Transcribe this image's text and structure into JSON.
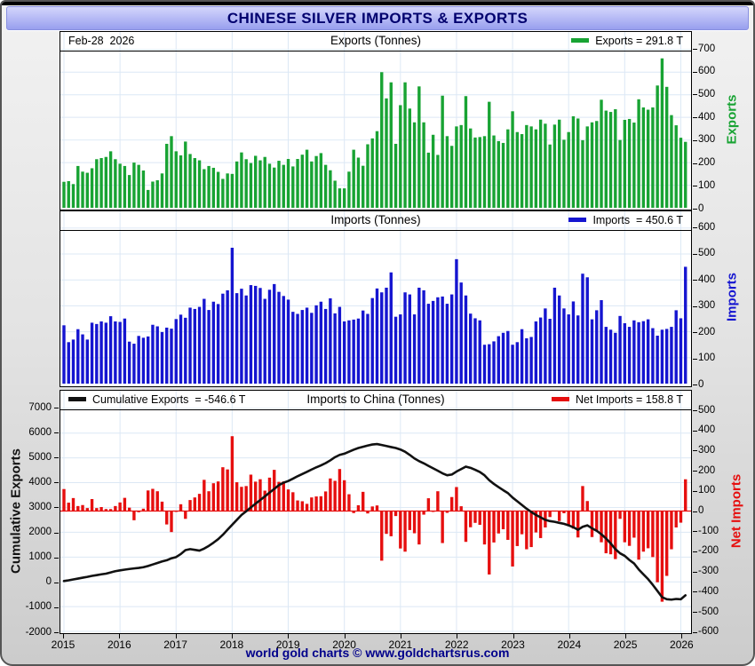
{
  "title": "CHINESE SILVER IMPORTS & EXPORTS",
  "date_label": "Feb-28  2026",
  "footer": "world gold charts © www.goldchartsrus.com",
  "colors": {
    "exports": "#18a333",
    "imports": "#1515d0",
    "net_imports": "#e60f0f",
    "cumulative_line": "#111111",
    "title_text": "#00006e",
    "grid": "#dce8f5",
    "panel_border": "#000000",
    "footer_text": "#00008b"
  },
  "panels": {
    "exports": {
      "title": "Exports (Tonnes)",
      "legend": "Exports = 291.8 T",
      "axis_label": "Exports"
    },
    "imports": {
      "title": "Imports (Tonnes)",
      "legend": "Imports  = 450.6 T",
      "axis_label": "Imports"
    },
    "bottom": {
      "title": "Imports to China (Tonnes)",
      "legend_left": "Cumulative Exports  = -546.6 T",
      "legend_right": "Net Imports = 158.8 T",
      "axis_label_left": "Cumulative Exports",
      "axis_label_right": "Net Imports"
    }
  },
  "x_years": [
    "2015",
    "2016",
    "2017",
    "2018",
    "2019",
    "2020",
    "2021",
    "2022",
    "2023",
    "2024",
    "2025",
    "2026"
  ],
  "chart_data": [
    {
      "type": "bar",
      "name": "Exports",
      "title": "Exports (Tonnes)",
      "legend": "Exports = 291.8 T",
      "unit": "tonnes",
      "x": {
        "start": "2015-01",
        "end": "2026-02",
        "interval": "month",
        "count": 134
      },
      "xticks": [
        2015,
        2016,
        2017,
        2018,
        2019,
        2020,
        2021,
        2022,
        2023,
        2024,
        2025,
        2026
      ],
      "ylim": [
        0,
        700
      ],
      "yticks": [
        0,
        100,
        200,
        300,
        400,
        500,
        600,
        700
      ],
      "grid": true,
      "legend_position": "top-right",
      "last_value": 291.8,
      "values": [
        115,
        118,
        105,
        185,
        160,
        155,
        175,
        215,
        220,
        225,
        250,
        215,
        195,
        185,
        145,
        200,
        190,
        165,
        79,
        116,
        122,
        152,
        283,
        317,
        250,
        232,
        293,
        238,
        220,
        210,
        171,
        185,
        177,
        159,
        128,
        152,
        150,
        205,
        245,
        215,
        198,
        230,
        210,
        225,
        195,
        178,
        208,
        190,
        216,
        183,
        216,
        235,
        257,
        205,
        229,
        242,
        190,
        166,
        120,
        86,
        86,
        160,
        257,
        222,
        186,
        281,
        307,
        339,
        600,
        484,
        555,
        283,
        454,
        555,
        439,
        378,
        537,
        378,
        244,
        323,
        234,
        496,
        317,
        274,
        360,
        366,
        494,
        351,
        311,
        313,
        317,
        469,
        320,
        295,
        287,
        347,
        427,
        335,
        326,
        366,
        360,
        347,
        390,
        372,
        280,
        368,
        390,
        301,
        335,
        405,
        395,
        299,
        360,
        378,
        384,
        478,
        430,
        424,
        436,
        300,
        389,
        393,
        377,
        480,
        444,
        434,
        444,
        541,
        661,
        535,
        410,
        365,
        310,
        291.8
      ]
    },
    {
      "type": "bar",
      "name": "Imports",
      "title": "Imports (Tonnes)",
      "legend": "Imports  = 450.6 T",
      "unit": "tonnes",
      "x": {
        "start": "2015-01",
        "end": "2026-02",
        "interval": "month",
        "count": 134
      },
      "xticks": [
        2015,
        2016,
        2017,
        2018,
        2019,
        2020,
        2021,
        2022,
        2023,
        2024,
        2025,
        2026
      ],
      "ylim": [
        0,
        600
      ],
      "yticks": [
        0,
        100,
        200,
        300,
        400,
        500,
        600
      ],
      "grid": true,
      "legend_position": "top-right",
      "last_value": 450.6,
      "values": [
        225,
        160,
        170,
        210,
        190,
        170,
        235,
        230,
        240,
        235,
        260,
        240,
        238,
        251,
        162,
        154,
        184,
        177,
        182,
        227,
        221,
        199,
        216,
        212,
        249,
        266,
        254,
        293,
        288,
        296,
        327,
        284,
        316,
        307,
        347,
        360,
        524,
        349,
        366,
        340,
        380,
        377,
        369,
        327,
        362,
        384,
        354,
        338,
        324,
        277,
        269,
        284,
        293,
        273,
        302,
        316,
        288,
        329,
        271,
        296,
        240,
        244,
        247,
        251,
        282,
        269,
        330,
        367,
        352,
        370,
        429,
        258,
        267,
        352,
        344,
        267,
        370,
        360,
        308,
        319,
        333,
        336,
        308,
        344,
        480,
        390,
        340,
        270,
        252,
        244,
        150,
        152,
        163,
        183,
        196,
        203,
        150,
        160,
        210,
        175,
        180,
        240,
        255,
        290,
        250,
        370,
        340,
        290,
        267,
        317,
        263,
        424,
        410,
        248,
        283,
        322,
        219,
        208,
        196,
        261,
        233,
        219,
        244,
        237,
        241,
        248,
        214,
        185,
        208,
        211,
        219,
        283,
        252,
        450.6
      ]
    },
    {
      "type": "bar+line",
      "name": "Imports to China",
      "title": "Imports to China (Tonnes)",
      "x": {
        "start": "2015-01",
        "end": "2026-02",
        "interval": "month",
        "count": 134
      },
      "xticks": [
        2015,
        2016,
        2017,
        2018,
        2019,
        2020,
        2021,
        2022,
        2023,
        2024,
        2025,
        2026
      ],
      "grid": true,
      "series": [
        {
          "name": "Net Imports",
          "type": "bar",
          "axis": "right",
          "legend": "Net Imports = 158.8 T",
          "ylim": [
            -600,
            500
          ],
          "yticks": [
            -600,
            -500,
            -400,
            -300,
            -200,
            -100,
            0,
            100,
            200,
            300,
            400,
            500
          ],
          "last_value": 158.8,
          "values": [
            110,
            42,
            65,
            25,
            30,
            15,
            60,
            15,
            20,
            10,
            10,
            25,
            43,
            66,
            17,
            -46,
            -6,
            12,
            103,
            111,
            99,
            47,
            -67,
            -105,
            -1,
            34,
            -39,
            55,
            68,
            86,
            156,
            99,
            139,
            148,
            219,
            208,
            374,
            144,
            121,
            125,
            182,
            147,
            159,
            102,
            167,
            206,
            146,
            148,
            108,
            94,
            53,
            49,
            36,
            68,
            73,
            74,
            98,
            163,
            151,
            210,
            154,
            84,
            -10,
            29,
            96,
            -12,
            23,
            28,
            -248,
            -114,
            -126,
            -25,
            -187,
            -203,
            -95,
            -111,
            -167,
            -18,
            64,
            -4,
            99,
            -160,
            -9,
            70,
            120,
            24,
            -154,
            -81,
            -59,
            -69,
            -167,
            -317,
            -157,
            -112,
            -91,
            -144,
            -277,
            -175,
            -116,
            -191,
            -180,
            -107,
            -135,
            -82,
            -30,
            2,
            -50,
            -11,
            -68,
            -88,
            -132,
            125,
            50,
            -130,
            -101,
            -156,
            -211,
            -216,
            -240,
            -39,
            -156,
            -174,
            -133,
            -243,
            -203,
            -186,
            -230,
            -356,
            -453,
            -324,
            -191,
            -82,
            -58,
            158.8
          ]
        },
        {
          "name": "Cumulative Exports",
          "type": "line",
          "axis": "left",
          "legend": "Cumulative Exports  = -546.6 T",
          "ylim": [
            -2000,
            7000
          ],
          "yticks": [
            -2000,
            -1000,
            0,
            1000,
            2000,
            3000,
            4000,
            5000,
            6000,
            7000
          ],
          "last_value": -546.6,
          "values": [
            30,
            60,
            95,
            130,
            165,
            200,
            240,
            270,
            300,
            330,
            380,
            430,
            460,
            490,
            520,
            540,
            560,
            590,
            640,
            700,
            760,
            820,
            870,
            950,
            1000,
            1120,
            1280,
            1320,
            1290,
            1260,
            1340,
            1450,
            1580,
            1720,
            1900,
            2100,
            2300,
            2500,
            2700,
            2850,
            3000,
            3150,
            3300,
            3450,
            3600,
            3750,
            3900,
            4000,
            4070,
            4160,
            4260,
            4350,
            4440,
            4530,
            4620,
            4700,
            4790,
            4900,
            5030,
            5120,
            5170,
            5250,
            5330,
            5400,
            5450,
            5500,
            5540,
            5560,
            5520,
            5480,
            5440,
            5400,
            5340,
            5250,
            5120,
            4980,
            4870,
            4780,
            4680,
            4580,
            4480,
            4380,
            4300,
            4330,
            4450,
            4550,
            4650,
            4600,
            4520,
            4430,
            4300,
            4100,
            3950,
            3820,
            3700,
            3580,
            3400,
            3250,
            3100,
            2950,
            2820,
            2700,
            2600,
            2500,
            2450,
            2420,
            2380,
            2340,
            2280,
            2200,
            2100,
            2220,
            2280,
            2160,
            2060,
            1920,
            1750,
            1550,
            1320,
            1150,
            1050,
            880,
            740,
            500,
            300,
            110,
            -120,
            -370,
            -620,
            -700,
            -720,
            -690,
            -705,
            -546.6
          ]
        }
      ]
    }
  ]
}
